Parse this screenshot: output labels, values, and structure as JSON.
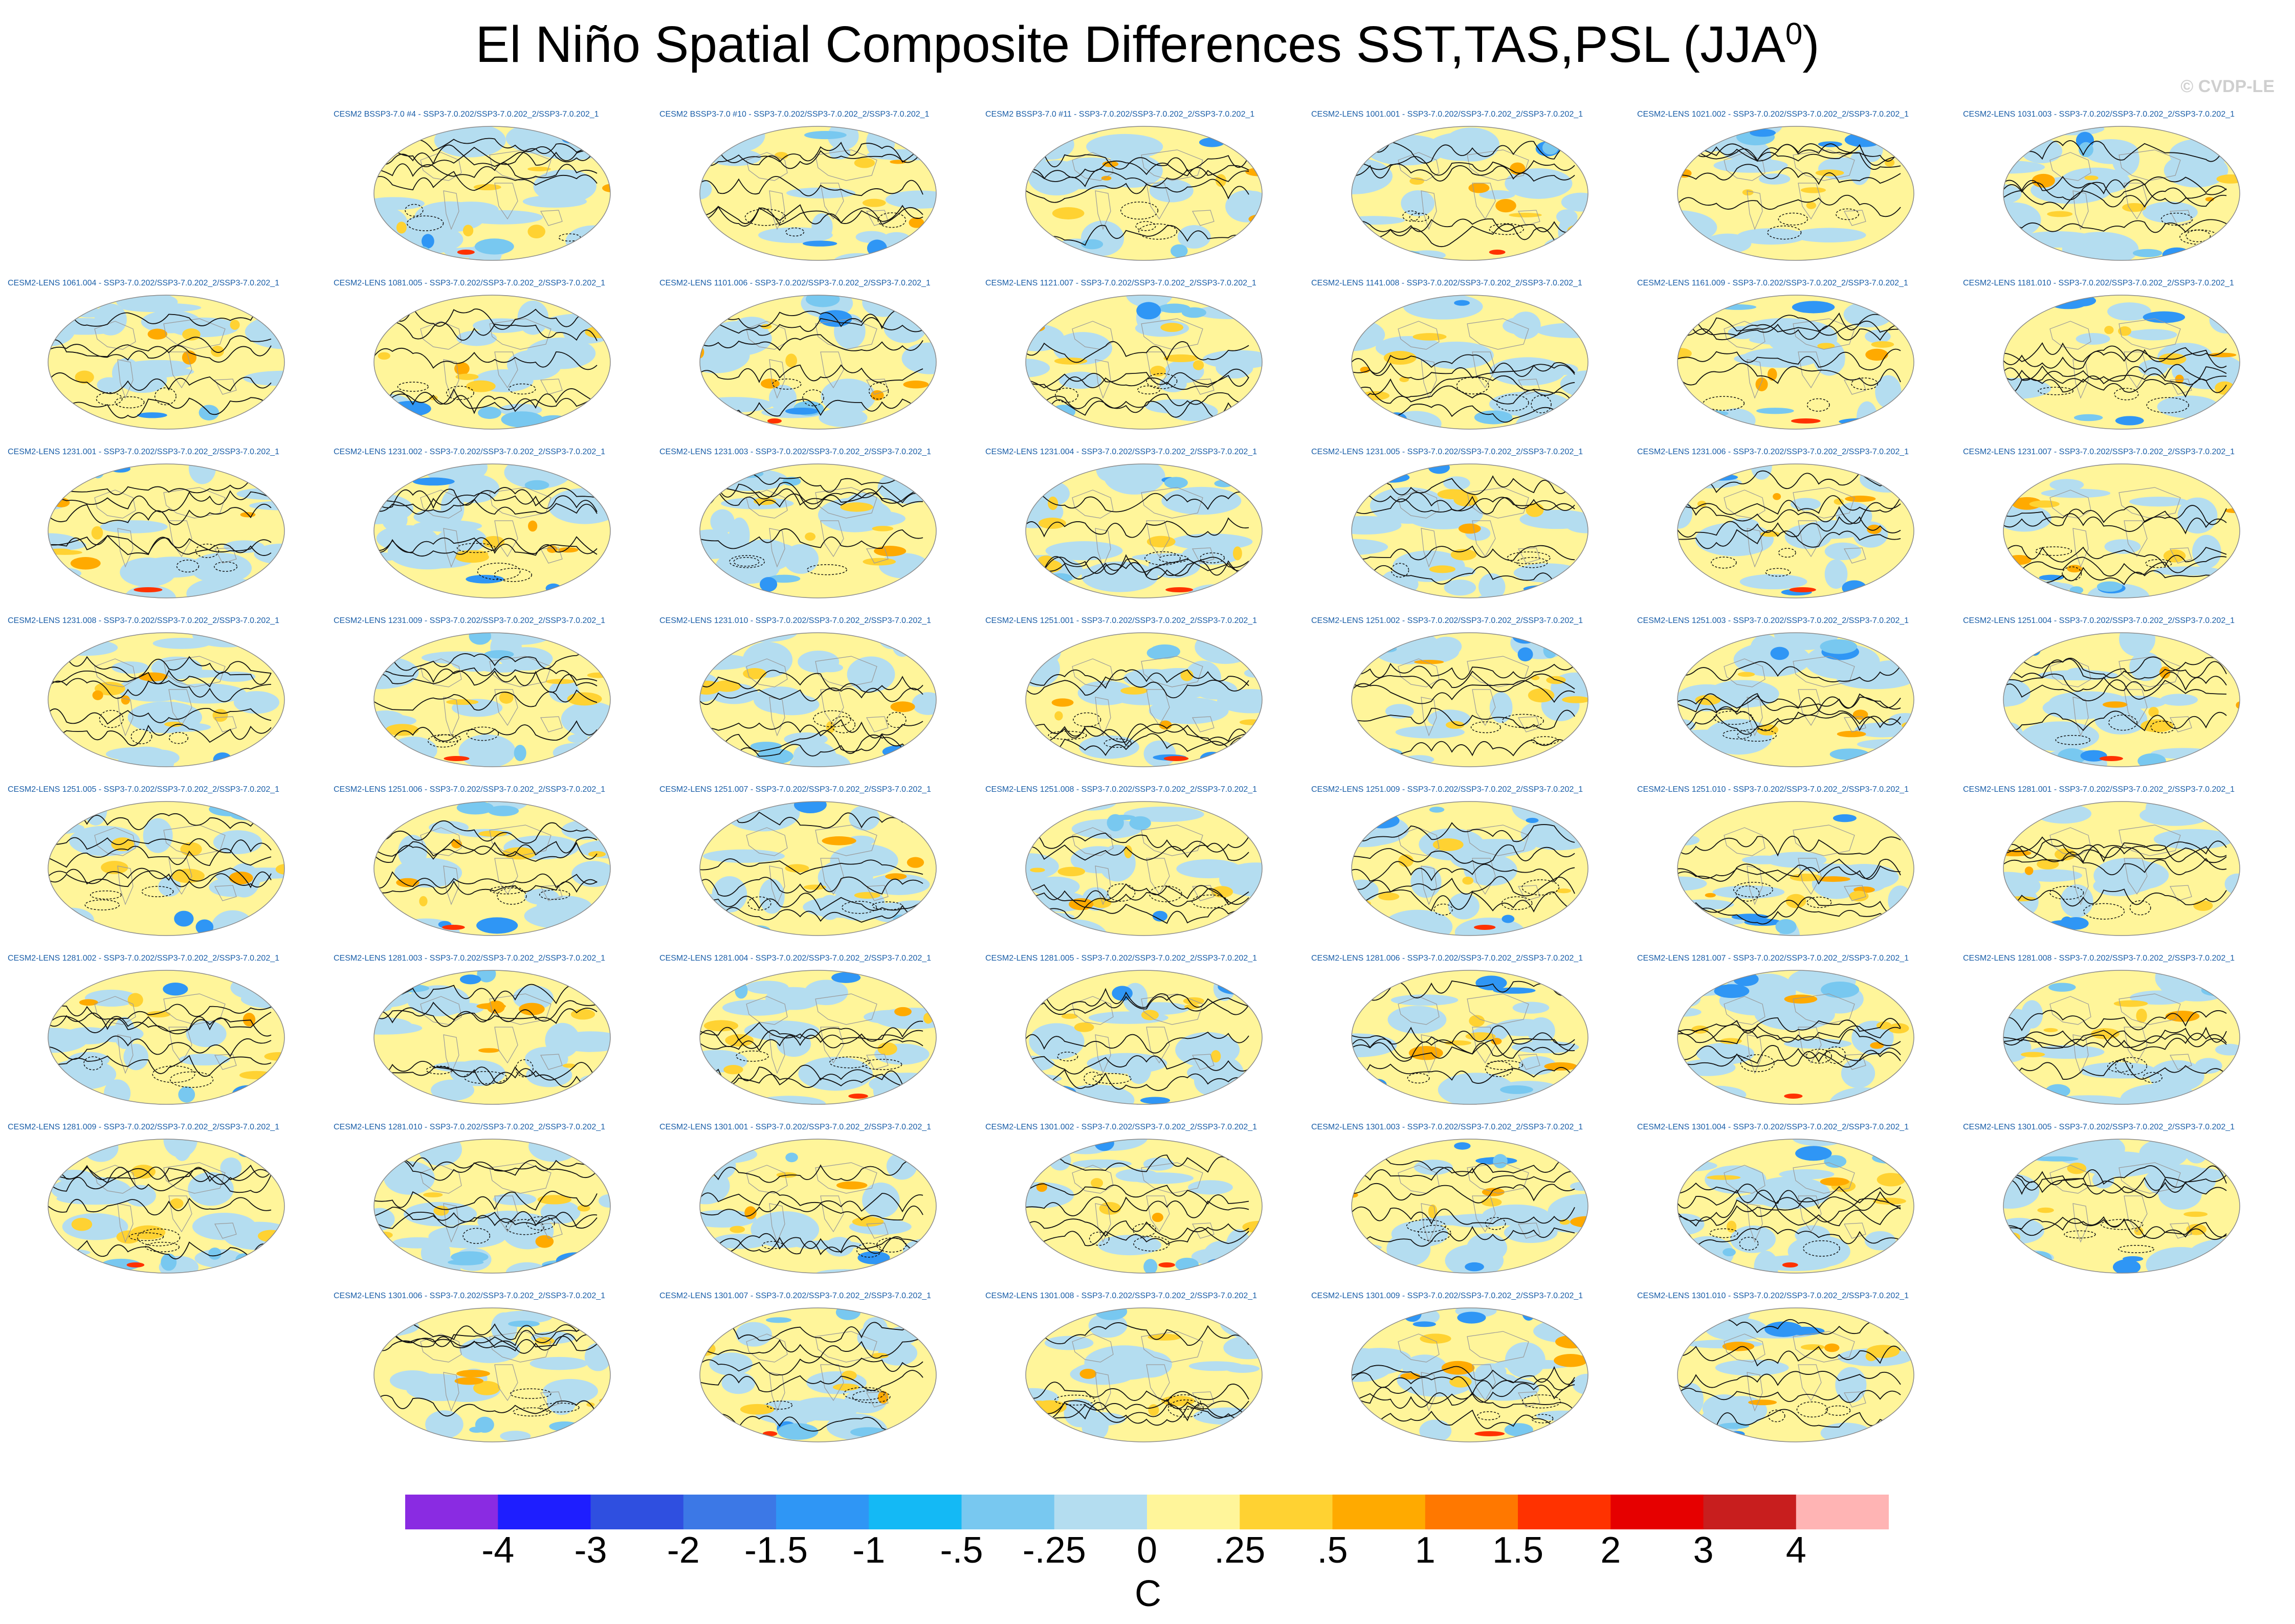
{
  "title": {
    "main": "El Niño Spatial Composite Differences SST,TAS,PSL (JJA",
    "superscript": "0",
    "close": ")"
  },
  "copyright": "© CVDP-LE",
  "panels": [
    {
      "label": "CESM2 BSSP3-7.0 #4 - SSP3-7.0.202/SSP3-7.0.202_2/SSP3-7.0.202_1"
    },
    {
      "label": "CESM2 BSSP3-7.0 #10 - SSP3-7.0.202/SSP3-7.0.202_2/SSP3-7.0.202_1"
    },
    {
      "label": "CESM2 BSSP3-7.0 #11 - SSP3-7.0.202/SSP3-7.0.202_2/SSP3-7.0.202_1"
    },
    {
      "label": "CESM2-LENS 1001.001 - SSP3-7.0.202/SSP3-7.0.202_2/SSP3-7.0.202_1"
    },
    {
      "label": "CESM2-LENS 1021.002 - SSP3-7.0.202/SSP3-7.0.202_2/SSP3-7.0.202_1"
    },
    {
      "label": "CESM2-LENS 1031.003 - SSP3-7.0.202/SSP3-7.0.202_2/SSP3-7.0.202_1"
    },
    {
      "label": "CESM2-LENS 1061.004 - SSP3-7.0.202/SSP3-7.0.202_2/SSP3-7.0.202_1"
    },
    {
      "label": "CESM2-LENS 1081.005 - SSP3-7.0.202/SSP3-7.0.202_2/SSP3-7.0.202_1"
    },
    {
      "label": "CESM2-LENS 1101.006 - SSP3-7.0.202/SSP3-7.0.202_2/SSP3-7.0.202_1"
    },
    {
      "label": "CESM2-LENS 1121.007 - SSP3-7.0.202/SSP3-7.0.202_2/SSP3-7.0.202_1"
    },
    {
      "label": "CESM2-LENS 1141.008 - SSP3-7.0.202/SSP3-7.0.202_2/SSP3-7.0.202_1"
    },
    {
      "label": "CESM2-LENS 1161.009 - SSP3-7.0.202/SSP3-7.0.202_2/SSP3-7.0.202_1"
    },
    {
      "label": "CESM2-LENS 1181.010 - SSP3-7.0.202/SSP3-7.0.202_2/SSP3-7.0.202_1"
    },
    {
      "label": "CESM2-LENS 1231.001 - SSP3-7.0.202/SSP3-7.0.202_2/SSP3-7.0.202_1"
    },
    {
      "label": "CESM2-LENS 1231.002 - SSP3-7.0.202/SSP3-7.0.202_2/SSP3-7.0.202_1"
    },
    {
      "label": "CESM2-LENS 1231.003 - SSP3-7.0.202/SSP3-7.0.202_2/SSP3-7.0.202_1"
    },
    {
      "label": "CESM2-LENS 1231.004 - SSP3-7.0.202/SSP3-7.0.202_2/SSP3-7.0.202_1"
    },
    {
      "label": "CESM2-LENS 1231.005 - SSP3-7.0.202/SSP3-7.0.202_2/SSP3-7.0.202_1"
    },
    {
      "label": "CESM2-LENS 1231.006 - SSP3-7.0.202/SSP3-7.0.202_2/SSP3-7.0.202_1"
    },
    {
      "label": "CESM2-LENS 1231.007 - SSP3-7.0.202/SSP3-7.0.202_2/SSP3-7.0.202_1"
    },
    {
      "label": "CESM2-LENS 1231.008 - SSP3-7.0.202/SSP3-7.0.202_2/SSP3-7.0.202_1"
    },
    {
      "label": "CESM2-LENS 1231.009 - SSP3-7.0.202/SSP3-7.0.202_2/SSP3-7.0.202_1"
    },
    {
      "label": "CESM2-LENS 1231.010 - SSP3-7.0.202/SSP3-7.0.202_2/SSP3-7.0.202_1"
    },
    {
      "label": "CESM2-LENS 1251.001 - SSP3-7.0.202/SSP3-7.0.202_2/SSP3-7.0.202_1"
    },
    {
      "label": "CESM2-LENS 1251.002 - SSP3-7.0.202/SSP3-7.0.202_2/SSP3-7.0.202_1"
    },
    {
      "label": "CESM2-LENS 1251.003 - SSP3-7.0.202/SSP3-7.0.202_2/SSP3-7.0.202_1"
    },
    {
      "label": "CESM2-LENS 1251.004 - SSP3-7.0.202/SSP3-7.0.202_2/SSP3-7.0.202_1"
    },
    {
      "label": "CESM2-LENS 1251.005 - SSP3-7.0.202/SSP3-7.0.202_2/SSP3-7.0.202_1"
    },
    {
      "label": "CESM2-LENS 1251.006 - SSP3-7.0.202/SSP3-7.0.202_2/SSP3-7.0.202_1"
    },
    {
      "label": "CESM2-LENS 1251.007 - SSP3-7.0.202/SSP3-7.0.202_2/SSP3-7.0.202_1"
    },
    {
      "label": "CESM2-LENS 1251.008 - SSP3-7.0.202/SSP3-7.0.202_2/SSP3-7.0.202_1"
    },
    {
      "label": "CESM2-LENS 1251.009 - SSP3-7.0.202/SSP3-7.0.202_2/SSP3-7.0.202_1"
    },
    {
      "label": "CESM2-LENS 1251.010 - SSP3-7.0.202/SSP3-7.0.202_2/SSP3-7.0.202_1"
    },
    {
      "label": "CESM2-LENS 1281.001 - SSP3-7.0.202/SSP3-7.0.202_2/SSP3-7.0.202_1"
    },
    {
      "label": "CESM2-LENS 1281.002 - SSP3-7.0.202/SSP3-7.0.202_2/SSP3-7.0.202_1"
    },
    {
      "label": "CESM2-LENS 1281.003 - SSP3-7.0.202/SSP3-7.0.202_2/SSP3-7.0.202_1"
    },
    {
      "label": "CESM2-LENS 1281.004 - SSP3-7.0.202/SSP3-7.0.202_2/SSP3-7.0.202_1"
    },
    {
      "label": "CESM2-LENS 1281.005 - SSP3-7.0.202/SSP3-7.0.202_2/SSP3-7.0.202_1"
    },
    {
      "label": "CESM2-LENS 1281.006 - SSP3-7.0.202/SSP3-7.0.202_2/SSP3-7.0.202_1"
    },
    {
      "label": "CESM2-LENS 1281.007 - SSP3-7.0.202/SSP3-7.0.202_2/SSP3-7.0.202_1"
    },
    {
      "label": "CESM2-LENS 1281.008 - SSP3-7.0.202/SSP3-7.0.202_2/SSP3-7.0.202_1"
    },
    {
      "label": "CESM2-LENS 1281.009 - SSP3-7.0.202/SSP3-7.0.202_2/SSP3-7.0.202_1"
    },
    {
      "label": "CESM2-LENS 1281.010 - SSP3-7.0.202/SSP3-7.0.202_2/SSP3-7.0.202_1"
    },
    {
      "label": "CESM2-LENS 1301.001 - SSP3-7.0.202/SSP3-7.0.202_2/SSP3-7.0.202_1"
    },
    {
      "label": "CESM2-LENS 1301.002 - SSP3-7.0.202/SSP3-7.0.202_2/SSP3-7.0.202_1"
    },
    {
      "label": "CESM2-LENS 1301.003 - SSP3-7.0.202/SSP3-7.0.202_2/SSP3-7.0.202_1"
    },
    {
      "label": "CESM2-LENS 1301.004 - SSP3-7.0.202/SSP3-7.0.202_2/SSP3-7.0.202_1"
    },
    {
      "label": "CESM2-LENS 1301.005 - SSP3-7.0.202/SSP3-7.0.202_2/SSP3-7.0.202_1"
    },
    {
      "label": "CESM2-LENS 1301.006 - SSP3-7.0.202/SSP3-7.0.202_2/SSP3-7.0.202_1"
    },
    {
      "label": "CESM2-LENS 1301.007 - SSP3-7.0.202/SSP3-7.0.202_2/SSP3-7.0.202_1"
    },
    {
      "label": "CESM2-LENS 1301.008 - SSP3-7.0.202/SSP3-7.0.202_2/SSP3-7.0.202_1"
    },
    {
      "label": "CESM2-LENS 1301.009 - SSP3-7.0.202/SSP3-7.0.202_2/SSP3-7.0.202_1"
    },
    {
      "label": "CESM2-LENS 1301.010 - SSP3-7.0.202/SSP3-7.0.202_2/SSP3-7.0.202_1"
    }
  ],
  "colorbar": {
    "colors": [
      "#8a2be2",
      "#1e1eff",
      "#2f4fe0",
      "#3c78e6",
      "#2f96f5",
      "#14b9f5",
      "#78c8f0",
      "#b4ddf0",
      "#fff59a",
      "#ffd232",
      "#ffaa00",
      "#ff7800",
      "#ff3200",
      "#e60000",
      "#c81e1e",
      "#ffb4b4"
    ],
    "labels": [
      "-4",
      "-3",
      "-2",
      "-1.5",
      "-1",
      "-.5",
      "-.25",
      "0",
      ".25",
      ".5",
      "1",
      "1.5",
      "2",
      "3",
      "4"
    ],
    "units": "C"
  },
  "chart_data": {
    "type": "heatmap",
    "title": "El Niño Spatial Composite Differences SST,TAS,PSL (JJA0)",
    "season": "JJA",
    "variables": [
      "SST",
      "TAS",
      "PSL"
    ],
    "projection": "global ellipse",
    "units": "C",
    "levels": [
      -4,
      -3,
      -2,
      -1.5,
      -1,
      -0.5,
      -0.25,
      0,
      0.25,
      0.5,
      1,
      1.5,
      2,
      3,
      4
    ],
    "n_panels": 53
  }
}
